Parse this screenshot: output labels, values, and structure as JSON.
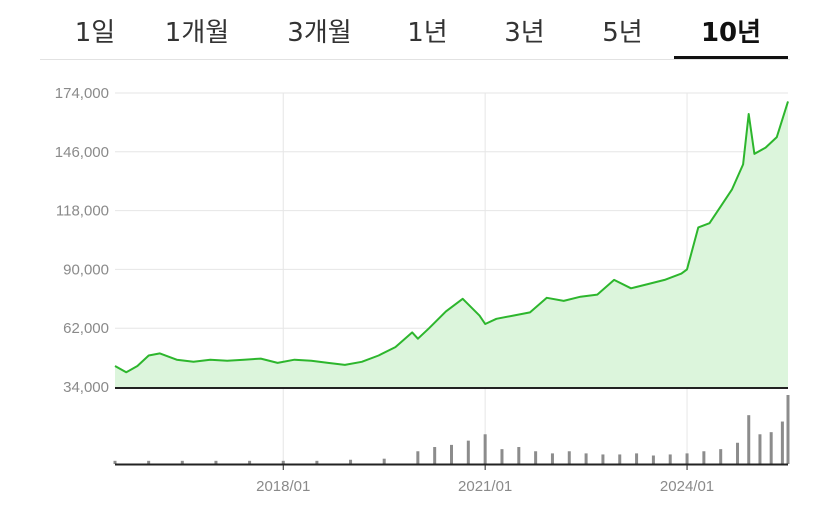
{
  "tabs": [
    {
      "label": "1일",
      "active": false
    },
    {
      "label": "1개월",
      "active": false
    },
    {
      "label": "3개월",
      "active": false
    },
    {
      "label": "1년",
      "active": false
    },
    {
      "label": "3년",
      "active": false
    },
    {
      "label": "5년",
      "active": false
    },
    {
      "label": "10년",
      "active": true
    }
  ],
  "colors": {
    "line": "#2db62d",
    "fill": "#dcf5dc",
    "grid": "#e6e6e6",
    "volume": "#8c8c8c",
    "tick_text": "#8a8a8a",
    "baseline": "#222222"
  },
  "chart_data": {
    "type": "area",
    "title": "",
    "xlabel": "",
    "ylabel": "",
    "ylim": [
      34000,
      174000
    ],
    "yticks": [
      174000,
      146000,
      118000,
      90000,
      62000,
      34000
    ],
    "ytick_labels": [
      "174,000",
      "146,000",
      "118,000",
      "90,000",
      "62,000",
      "34,000"
    ],
    "xlim": [
      "2015-07",
      "2025-07"
    ],
    "xticks": [
      "2018-01",
      "2021-01",
      "2024-01"
    ],
    "xtick_labels": [
      "2018/01",
      "2021/01",
      "2024/01"
    ],
    "grid": true,
    "series": [
      {
        "x": [
          "2015-07",
          "2015-09",
          "2015-11",
          "2016-01",
          "2016-03",
          "2016-06",
          "2016-09",
          "2016-12",
          "2017-03",
          "2017-06",
          "2017-09",
          "2017-12",
          "2018-03",
          "2018-06",
          "2018-09",
          "2018-12",
          "2019-03",
          "2019-06",
          "2019-09",
          "2019-12",
          "2020-01",
          "2020-03",
          "2020-06",
          "2020-09",
          "2020-12",
          "2021-01",
          "2021-03",
          "2021-06",
          "2021-09",
          "2021-12",
          "2022-03",
          "2022-06",
          "2022-09",
          "2022-12",
          "2023-03",
          "2023-06",
          "2023-09",
          "2023-12",
          "2024-01",
          "2024-03",
          "2024-05",
          "2024-07",
          "2024-09",
          "2024-11",
          "2024-12",
          "2025-01",
          "2025-03",
          "2025-05",
          "2025-07"
        ],
        "values": [
          44000,
          41000,
          44000,
          49000,
          50000,
          47000,
          46000,
          47000,
          46500,
          47000,
          47500,
          45500,
          47000,
          46500,
          45500,
          44500,
          46000,
          49000,
          53000,
          60000,
          57000,
          62000,
          70000,
          76000,
          68000,
          64000,
          66500,
          68000,
          69500,
          76500,
          75000,
          77000,
          78000,
          85000,
          81000,
          83000,
          85000,
          88000,
          90000,
          110000,
          112000,
          120000,
          128000,
          140000,
          164000,
          145000,
          148000,
          153000,
          170000
        ]
      }
    ],
    "volume": {
      "x": [
        "2015-07",
        "2016-01",
        "2016-07",
        "2017-01",
        "2017-07",
        "2018-01",
        "2018-07",
        "2019-01",
        "2019-07",
        "2020-01",
        "2020-04",
        "2020-07",
        "2020-10",
        "2021-01",
        "2021-04",
        "2021-07",
        "2021-10",
        "2022-01",
        "2022-04",
        "2022-07",
        "2022-10",
        "2023-01",
        "2023-04",
        "2023-07",
        "2023-10",
        "2024-01",
        "2024-04",
        "2024-07",
        "2024-10",
        "2024-12",
        "2025-02",
        "2025-04",
        "2025-06",
        "2025-07"
      ],
      "values": [
        3,
        3,
        3,
        3,
        3,
        3,
        3,
        4,
        5,
        12,
        16,
        18,
        22,
        28,
        14,
        16,
        12,
        10,
        12,
        10,
        9,
        9,
        10,
        8,
        9,
        10,
        12,
        14,
        20,
        46,
        28,
        30,
        40,
        65
      ]
    }
  }
}
